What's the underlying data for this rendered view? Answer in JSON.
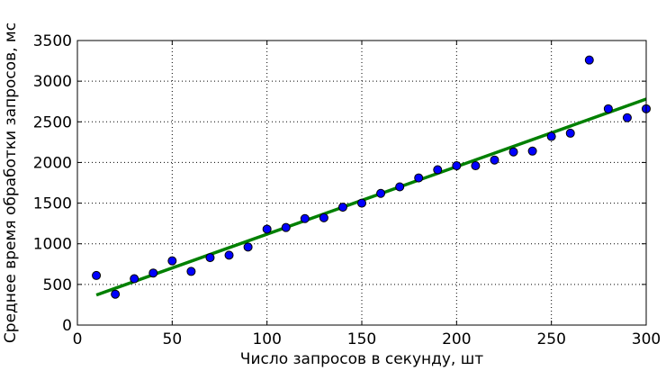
{
  "chart_data": {
    "type": "scatter",
    "title": "",
    "xlabel": "Число запросов в секунду, шт",
    "ylabel": "Среднее время обработки запросов, мс",
    "xlim": [
      0,
      300
    ],
    "ylim": [
      0,
      3500
    ],
    "x_ticks": [
      0,
      50,
      100,
      150,
      200,
      250,
      300
    ],
    "y_ticks": [
      0,
      500,
      1000,
      1500,
      2000,
      2500,
      3000,
      3500
    ],
    "grid": true,
    "series": [
      {
        "kind": "scatter",
        "color": "#0000ff",
        "points": [
          [
            10,
            610
          ],
          [
            20,
            380
          ],
          [
            30,
            570
          ],
          [
            40,
            640
          ],
          [
            50,
            790
          ],
          [
            60,
            660
          ],
          [
            70,
            830
          ],
          [
            80,
            860
          ],
          [
            90,
            960
          ],
          [
            100,
            1180
          ],
          [
            110,
            1200
          ],
          [
            120,
            1310
          ],
          [
            130,
            1320
          ],
          [
            140,
            1450
          ],
          [
            150,
            1500
          ],
          [
            160,
            1620
          ],
          [
            170,
            1700
          ],
          [
            180,
            1810
          ],
          [
            190,
            1910
          ],
          [
            200,
            1960
          ],
          [
            210,
            1960
          ],
          [
            220,
            2030
          ],
          [
            230,
            2130
          ],
          [
            240,
            2140
          ],
          [
            250,
            2320
          ],
          [
            260,
            2360
          ],
          [
            270,
            3260
          ],
          [
            280,
            2660
          ],
          [
            290,
            2550
          ],
          [
            300,
            2660
          ]
        ]
      },
      {
        "kind": "line",
        "color": "#008000",
        "points": [
          [
            10,
            370
          ],
          [
            300,
            2780
          ]
        ]
      }
    ]
  }
}
